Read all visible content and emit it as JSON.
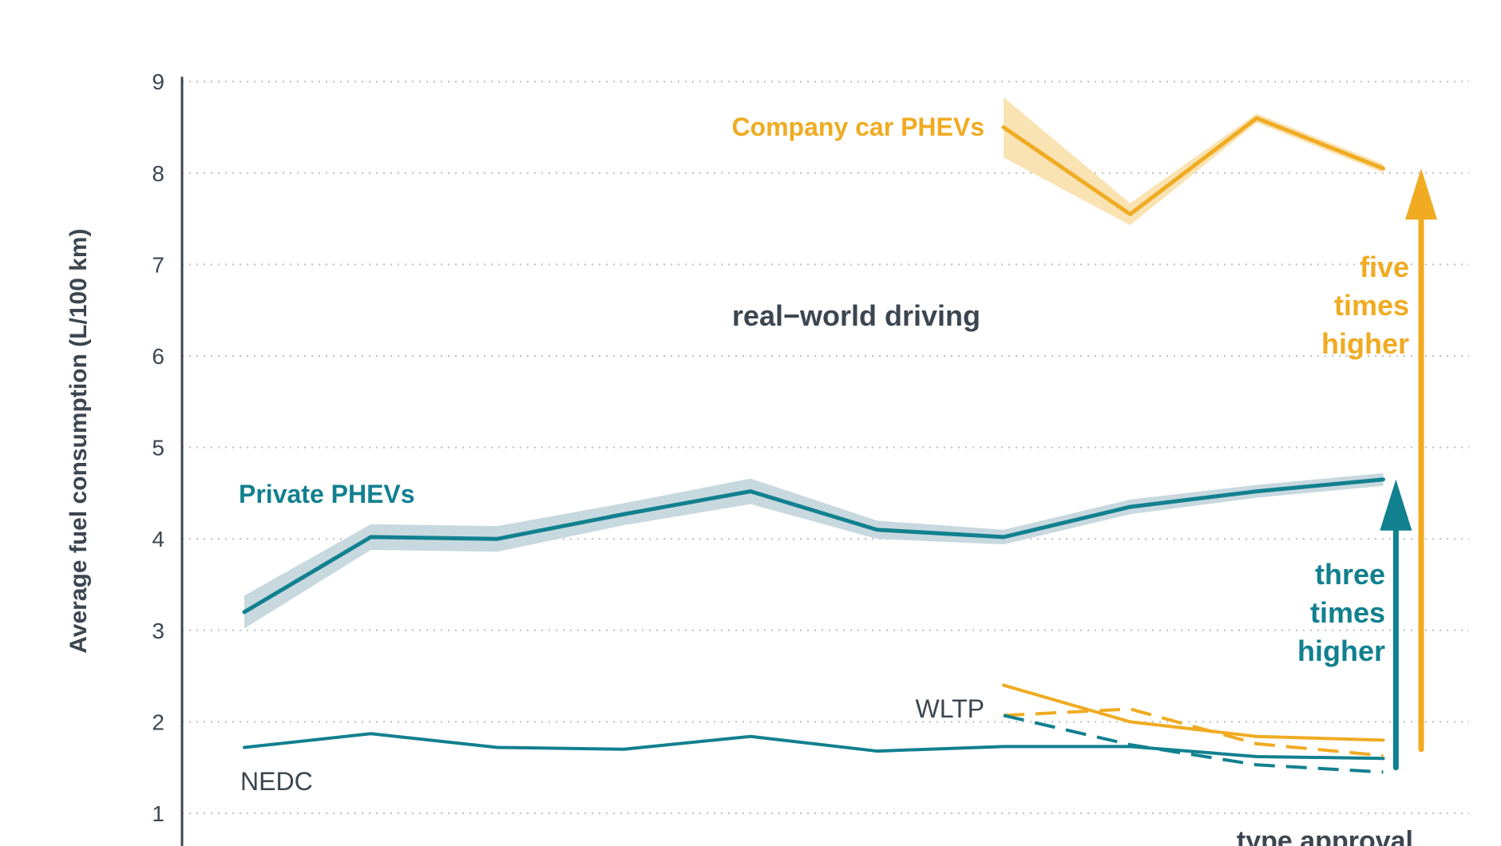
{
  "chart_data": {
    "type": "line",
    "ylabel": "Average fuel consumption (L/100 km)",
    "ylim": [
      1,
      9
    ],
    "yticks": [
      1,
      2,
      3,
      4,
      5,
      6,
      7,
      8,
      9
    ],
    "grid": true,
    "x": [
      1,
      2,
      3,
      4,
      5,
      6,
      7,
      8,
      9,
      10
    ],
    "colors": {
      "private": "#11808f",
      "company": "#f0ab22",
      "dark": "#3c4650",
      "band_private": "#c8d8df",
      "band_company": "#f9e3b3"
    },
    "series": [
      {
        "key": "private_real",
        "name": "Private PHEVs",
        "color": "#11808f",
        "style": "solid",
        "x": [
          1,
          2,
          3,
          4,
          5,
          6,
          7,
          8,
          9,
          10
        ],
        "values": [
          3.2,
          4.02,
          4.0,
          4.27,
          4.52,
          4.1,
          4.02,
          4.35,
          4.52,
          4.65
        ],
        "band": [
          0.18,
          0.14,
          0.14,
          0.12,
          0.14,
          0.1,
          0.08,
          0.08,
          0.07,
          0.07
        ]
      },
      {
        "key": "company_real",
        "name": "Company car PHEVs",
        "color": "#f0ab22",
        "style": "solid",
        "x": [
          7,
          8,
          9,
          10
        ],
        "values": [
          8.5,
          7.55,
          8.6,
          8.05
        ],
        "band": [
          0.33,
          0.12,
          0.05,
          0.05
        ]
      },
      {
        "key": "private_nedc",
        "name": "",
        "color": "#11808f",
        "style": "solid",
        "x": [
          1,
          2,
          3,
          4,
          5,
          6,
          7,
          8,
          9,
          10
        ],
        "values": [
          1.72,
          1.87,
          1.72,
          1.7,
          1.84,
          1.68,
          1.73,
          1.73,
          1.62,
          1.6
        ]
      },
      {
        "key": "company_nedc",
        "name": "",
        "color": "#f0ab22",
        "style": "solid",
        "x": [
          7,
          8,
          9,
          10
        ],
        "values": [
          2.4,
          2.0,
          1.84,
          1.8
        ]
      },
      {
        "key": "company_wltp",
        "name": "",
        "color": "#f0ab22",
        "style": "dashed",
        "x": [
          7,
          8,
          9,
          10
        ],
        "values": [
          2.07,
          2.14,
          1.76,
          1.63
        ]
      },
      {
        "key": "private_wltp",
        "name": "",
        "color": "#11808f",
        "style": "dashed",
        "x": [
          7,
          8,
          9,
          10
        ],
        "values": [
          2.07,
          1.75,
          1.53,
          1.45
        ]
      }
    ],
    "annotations": [
      {
        "key": "company_label",
        "text": "Company car PHEVs",
        "color": "#f0ab22"
      },
      {
        "key": "private_label",
        "text": "Private PHEVs",
        "color": "#11808f"
      },
      {
        "key": "real_world",
        "text": "real−world driving",
        "color": "#3c4650"
      },
      {
        "key": "five_times",
        "lines": [
          "five",
          "times",
          "higher"
        ],
        "color": "#f0ab22"
      },
      {
        "key": "three_times",
        "lines": [
          "three",
          "times",
          "higher"
        ],
        "color": "#11808f"
      },
      {
        "key": "wltp_label",
        "text": "WLTP",
        "color": "#3c4650"
      },
      {
        "key": "nedc_label",
        "text": "NEDC",
        "color": "#3c4650"
      },
      {
        "key": "type_approval",
        "text": "type approval",
        "color": "#3c4650"
      }
    ],
    "arrows": [
      {
        "key": "company_arrow",
        "x": 10.3,
        "from": 1.7,
        "to": 8.05,
        "color": "#f0ab22"
      },
      {
        "key": "private_arrow",
        "x": 10.1,
        "from": 1.5,
        "to": 4.65,
        "color": "#11808f"
      }
    ]
  }
}
